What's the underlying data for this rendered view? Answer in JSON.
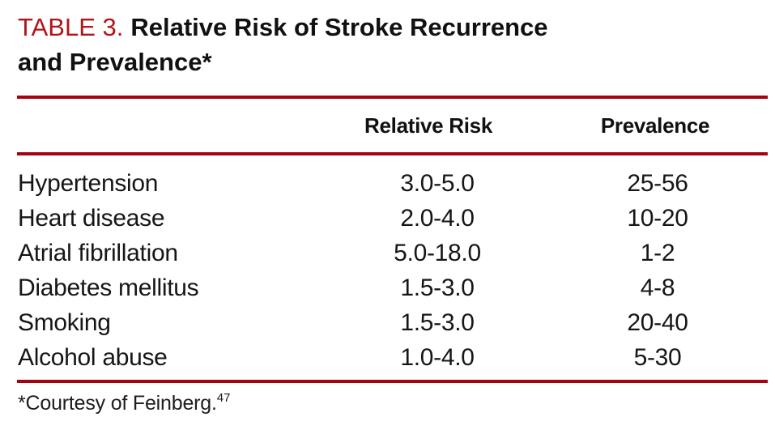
{
  "title": {
    "label": "TABLE 3.",
    "line1": "Relative Risk of Stroke Recurrence",
    "line2": "and Prevalence*"
  },
  "table": {
    "headers": {
      "relative_risk": "Relative Risk",
      "prevalence": "Prevalence"
    },
    "rows": [
      {
        "factor": "Hypertension",
        "relative_risk": "3.0-5.0",
        "prevalence": "25-56"
      },
      {
        "factor": "Heart disease",
        "relative_risk": "2.0-4.0",
        "prevalence": "10-20"
      },
      {
        "factor": "Atrial fibrillation",
        "relative_risk": "5.0-18.0",
        "prevalence": "1-2"
      },
      {
        "factor": "Diabetes mellitus",
        "relative_risk": "1.5-3.0",
        "prevalence": "4-8"
      },
      {
        "factor": "Smoking",
        "relative_risk": "1.5-3.0",
        "prevalence": "20-40"
      },
      {
        "factor": "Alcohol abuse",
        "relative_risk": "1.0-4.0",
        "prevalence": "5-30"
      }
    ]
  },
  "footnote": {
    "marker": "*",
    "text": "Courtesy of Feinberg.",
    "citation": "47"
  },
  "colors": {
    "title_red": "#b11419",
    "rule_red": "#a50310",
    "text_black": "#141414",
    "background": "#ffffff"
  },
  "chart_data": {
    "type": "table",
    "title": "TABLE 3. Relative Risk of Stroke Recurrence and Prevalence*",
    "columns": [
      "",
      "Relative Risk",
      "Prevalence"
    ],
    "rows": [
      [
        "Hypertension",
        "3.0-5.0",
        "25-56"
      ],
      [
        "Heart disease",
        "2.0-4.0",
        "10-20"
      ],
      [
        "Atrial fibrillation",
        "5.0-18.0",
        "1-2"
      ],
      [
        "Diabetes mellitus",
        "1.5-3.0",
        "4-8"
      ],
      [
        "Smoking",
        "1.5-3.0",
        "20-40"
      ],
      [
        "Alcohol abuse",
        "1.0-4.0",
        "5-30"
      ]
    ],
    "footnote": "*Courtesy of Feinberg.47"
  }
}
